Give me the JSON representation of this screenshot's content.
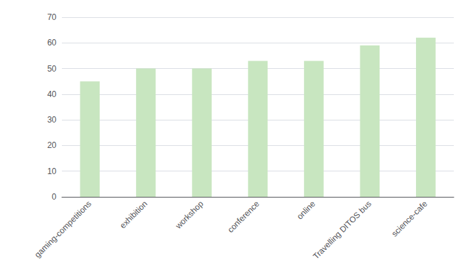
{
  "chart_data": {
    "type": "bar",
    "categories": [
      "gaming-competitions",
      "exhibition",
      "workshop",
      "conference",
      "online",
      "Travelling DITOS bus",
      "science-cafe"
    ],
    "values": [
      45,
      50,
      50,
      53,
      53,
      59,
      62
    ],
    "color": "#c8e6c0",
    "ylim": [
      0,
      70
    ],
    "yticks": [
      0,
      10,
      20,
      30,
      40,
      50,
      60,
      70
    ],
    "grid": true
  }
}
